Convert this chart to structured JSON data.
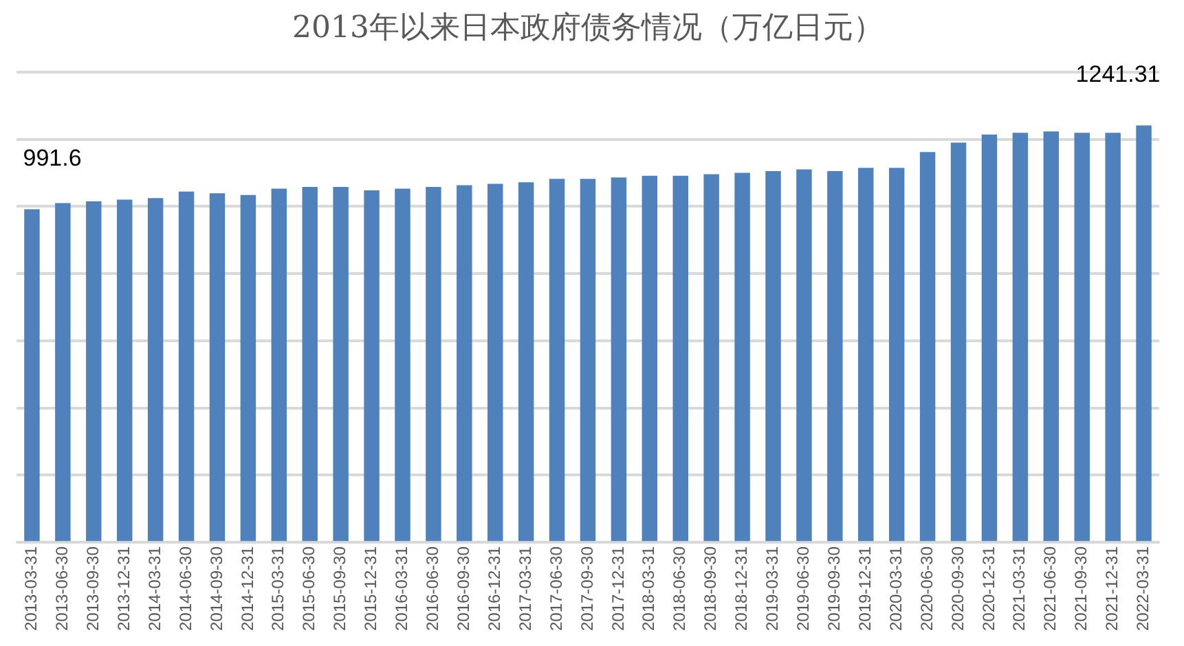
{
  "chart_data": {
    "type": "bar",
    "title": "2013年以来日本政府债务情况（万亿日元）",
    "categories": [
      "2013-03-31",
      "2013-06-30",
      "2013-09-30",
      "2013-12-31",
      "2014-03-31",
      "2014-06-30",
      "2014-09-30",
      "2014-12-31",
      "2015-03-31",
      "2015-06-30",
      "2015-09-30",
      "2015-12-31",
      "2016-03-31",
      "2016-06-30",
      "2016-09-30",
      "2016-12-31",
      "2017-03-31",
      "2017-06-30",
      "2017-09-30",
      "2017-12-31",
      "2018-03-31",
      "2018-06-30",
      "2018-09-30",
      "2018-12-31",
      "2019-03-31",
      "2019-06-30",
      "2019-09-30",
      "2019-12-31",
      "2020-03-31",
      "2020-06-30",
      "2020-09-30",
      "2020-12-31",
      "2021-03-31",
      "2021-06-30",
      "2021-09-30",
      "2021-12-31",
      "2022-03-31"
    ],
    "values": [
      991.6,
      1010,
      1015,
      1020,
      1025,
      1044,
      1039,
      1034,
      1053,
      1058,
      1058,
      1048,
      1053,
      1058,
      1063,
      1067,
      1072,
      1082,
      1082,
      1086,
      1091,
      1091,
      1096,
      1100,
      1105,
      1110,
      1105,
      1115,
      1115,
      1162,
      1190,
      1214,
      1219,
      1223,
      1219,
      1219,
      1241.31
    ],
    "value_labels": [
      "991.6",
      null,
      null,
      null,
      null,
      null,
      null,
      null,
      null,
      null,
      null,
      null,
      null,
      null,
      null,
      null,
      null,
      null,
      null,
      null,
      null,
      null,
      null,
      null,
      null,
      null,
      null,
      null,
      null,
      null,
      null,
      null,
      null,
      null,
      null,
      null,
      "1241.31"
    ],
    "color": "#4f81bd",
    "ylim": [
      0,
      1400
    ],
    "yticks": [
      {
        "value": 0,
        "label": null
      },
      {
        "value": 200,
        "label": null
      },
      {
        "value": 400,
        "label": null
      },
      {
        "value": 600,
        "label": null
      },
      {
        "value": 800,
        "label": null
      },
      {
        "value": 1000,
        "label": null
      },
      {
        "value": 1200,
        "label": null
      },
      {
        "value": 1400,
        "label": null
      }
    ],
    "tick_labels": "x",
    "grid": "y",
    "legend": false
  }
}
